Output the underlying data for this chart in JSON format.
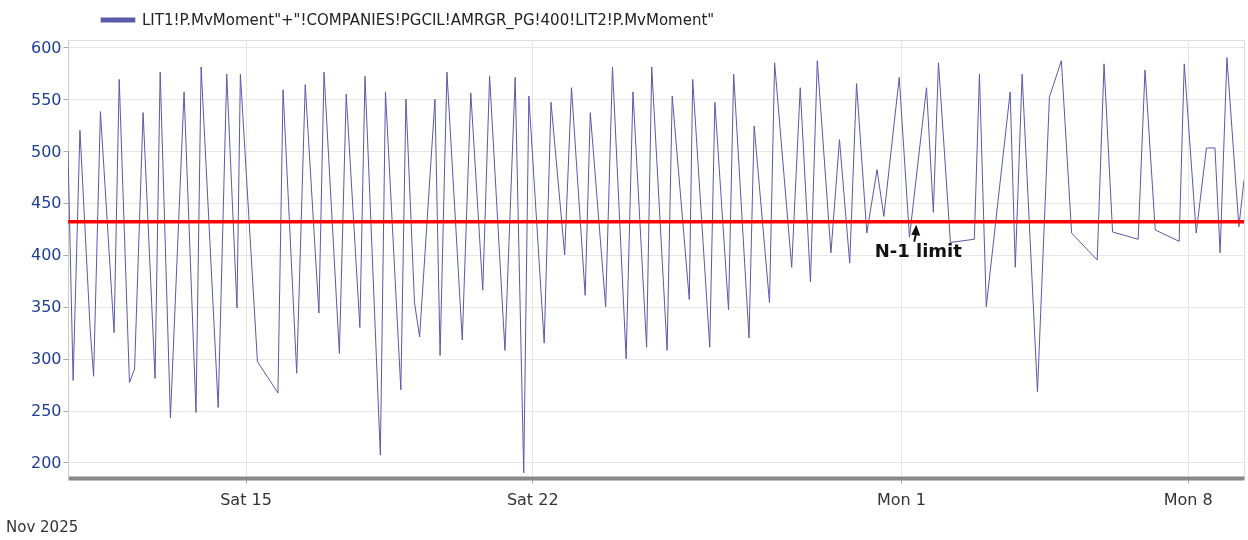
{
  "chart_data": {
    "type": "line",
    "x": [
      "2025-11-10T16:00",
      "2025-11-10T19:00",
      "2025-11-10T23:00",
      "2025-11-11T05:00",
      "2025-11-11T07:00",
      "2025-11-11T11:00",
      "2025-11-11T19:00",
      "2025-11-11T22:00",
      "2025-11-12T04:00",
      "2025-11-12T07:00",
      "2025-11-12T12:00",
      "2025-11-12T19:00",
      "2025-11-12T22:00",
      "2025-11-13T04:00",
      "2025-11-13T12:00",
      "2025-11-13T19:00",
      "2025-11-13T22:00",
      "2025-11-14T08:00",
      "2025-11-14T13:00",
      "2025-11-14T19:00",
      "2025-11-14T21:00",
      "2025-11-15T07:00",
      "2025-11-15T19:00",
      "2025-11-15T22:00",
      "2025-11-16T06:00",
      "2025-11-16T11:00",
      "2025-11-16T19:00",
      "2025-11-16T22:00",
      "2025-11-17T07:00",
      "2025-11-17T11:00",
      "2025-11-17T19:00",
      "2025-11-17T22:00",
      "2025-11-18T07:00",
      "2025-11-18T10:00",
      "2025-11-18T19:00",
      "2025-11-18T22:00",
      "2025-11-19T03:00",
      "2025-11-19T06:00",
      "2025-11-19T15:00",
      "2025-11-19T18:00",
      "2025-11-19T22:00",
      "2025-11-20T07:00",
      "2025-11-20T12:00",
      "2025-11-20T19:00",
      "2025-11-20T23:00",
      "2025-11-21T08:00",
      "2025-11-21T14:00",
      "2025-11-21T19:00",
      "2025-11-21T22:00",
      "2025-11-22T07:00",
      "2025-11-22T11:00",
      "2025-11-22T19:00",
      "2025-11-22T23:00",
      "2025-11-23T07:00",
      "2025-11-23T10:00",
      "2025-11-23T19:00",
      "2025-11-23T23:00",
      "2025-11-24T07:00",
      "2025-11-24T11:00",
      "2025-11-24T19:00",
      "2025-11-24T22:00",
      "2025-11-25T07:00",
      "2025-11-25T10:00",
      "2025-11-25T20:00",
      "2025-11-25T22:00",
      "2025-11-26T08:00",
      "2025-11-26T11:00",
      "2025-11-26T19:00",
      "2025-11-26T22:00",
      "2025-11-27T07:00",
      "2025-11-27T10:00",
      "2025-11-27T19:00",
      "2025-11-27T22:00",
      "2025-11-28T08:00",
      "2025-11-28T13:00",
      "2025-11-28T19:00",
      "2025-11-28T23:00",
      "2025-11-29T07:00",
      "2025-11-29T12:00",
      "2025-11-29T18:00",
      "2025-11-29T22:00",
      "2025-11-30T04:00",
      "2025-11-30T10:00",
      "2025-11-30T14:00",
      "2025-11-30T23:00",
      "2025-12-01T05:00",
      "2025-12-01T15:00",
      "2025-12-01T19:00",
      "2025-12-01T22:00",
      "2025-12-02T05:00",
      "2025-12-02T19:00",
      "2025-12-02T22:00",
      "2025-12-03T02:00",
      "2025-12-03T16:00",
      "2025-12-03T19:00",
      "2025-12-03T23:00",
      "2025-12-04T08:00",
      "2025-12-04T15:00",
      "2025-12-04T22:00",
      "2025-12-05T04:00",
      "2025-12-05T19:00",
      "2025-12-05T23:00",
      "2025-12-06T04:00",
      "2025-12-06T19:00",
      "2025-12-06T23:00",
      "2025-12-07T05:00",
      "2025-12-07T19:00",
      "2025-12-07T22:00",
      "2025-12-08T05:00",
      "2025-12-08T11:00",
      "2025-12-08T16:00",
      "2025-12-08T19:00",
      "2025-12-08T23:00",
      "2025-12-09T06:00",
      "2025-12-09T09:00"
    ],
    "series": [
      {
        "name": "LIT1!P.MvMoment\"+\"!COMPANIES!PGCIL!AMRGR_PG!400!LIT2!P.MvMoment\"",
        "color": "#5a5aa8",
        "values": [
          500,
          279,
          520,
          328,
          283,
          538,
          325,
          569,
          277,
          290,
          537,
          281,
          576,
          243,
          557,
          248,
          581,
          253,
          574,
          349,
          574,
          297,
          267,
          559,
          286,
          564,
          344,
          576,
          305,
          555,
          330,
          572,
          207,
          557,
          270,
          550,
          354,
          321,
          550,
          303,
          576,
          318,
          556,
          366,
          572,
          308,
          571,
          190,
          553,
          315,
          547,
          400,
          561,
          361,
          537,
          350,
          581,
          300,
          557,
          311,
          581,
          308,
          553,
          357,
          569,
          311,
          547,
          347,
          574,
          320,
          524,
          354,
          585,
          388,
          561,
          374,
          587,
          402,
          511,
          392,
          565,
          421,
          482,
          437,
          571,
          417,
          561,
          441,
          585,
          412,
          415,
          574,
          350,
          557,
          388,
          574,
          268,
          552,
          587,
          421,
          395,
          584,
          422,
          415,
          578,
          424,
          413,
          584,
          421,
          503,
          503,
          402,
          590,
          427,
          472
        ]
      }
    ],
    "xlim": [
      "2025-11-10T16:00",
      "2025-12-09T09:00"
    ],
    "xticks": [
      {
        "value": "2025-11-15",
        "label": "Sat 15"
      },
      {
        "value": "2025-11-22",
        "label": "Sat 22"
      },
      {
        "value": "2025-12-01",
        "label": "Mon 1"
      },
      {
        "value": "2025-12-08",
        "label": "Mon 8"
      }
    ],
    "ylim": [
      185,
      607
    ],
    "yticks": [
      200,
      250,
      300,
      350,
      400,
      450,
      500,
      550,
      600
    ],
    "grid": true,
    "legend": "top left",
    "ref_lines": [
      {
        "axis": "y",
        "value": 432,
        "label": "N-1 limit",
        "color": "#ff0000"
      }
    ],
    "annotations": [
      "Nov 2025"
    ]
  }
}
